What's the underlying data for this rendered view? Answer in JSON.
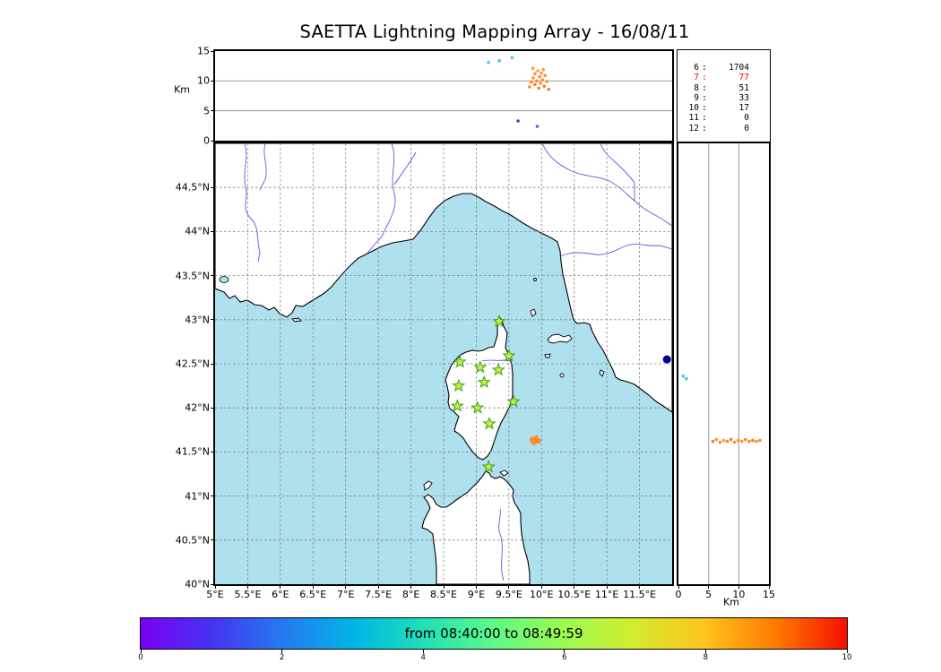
{
  "figure": {
    "title": "SAETTA Lightning Mapping Array - 16/08/11",
    "altitude_axis_label": "Km",
    "right_axis_label": "Km"
  },
  "axes": {
    "altitude_ticks": [
      {
        "label": "15",
        "v": 15
      },
      {
        "label": "10",
        "v": 10
      },
      {
        "label": "5",
        "v": 5
      },
      {
        "label": "0",
        "v": 0
      }
    ],
    "lat_ticks": [
      {
        "label": "44.5°N",
        "v": 44.5
      },
      {
        "label": "44°N",
        "v": 44
      },
      {
        "label": "43.5°N",
        "v": 43.5
      },
      {
        "label": "43°N",
        "v": 43
      },
      {
        "label": "42.5°N",
        "v": 42.5
      },
      {
        "label": "42°N",
        "v": 42
      },
      {
        "label": "41.5°N",
        "v": 41.5
      },
      {
        "label": "41°N",
        "v": 41
      },
      {
        "label": "40.5°N",
        "v": 40.5
      },
      {
        "label": "40°N",
        "v": 40
      }
    ],
    "lon_ticks": [
      {
        "label": "5°E",
        "v": 5
      },
      {
        "label": "5.5°E",
        "v": 5.5
      },
      {
        "label": "6°E",
        "v": 6
      },
      {
        "label": "6.5°E",
        "v": 6.5
      },
      {
        "label": "7°E",
        "v": 7
      },
      {
        "label": "7.5°E",
        "v": 7.5
      },
      {
        "label": "8°E",
        "v": 8
      },
      {
        "label": "8.5°E",
        "v": 8.5
      },
      {
        "label": "9°E",
        "v": 9
      },
      {
        "label": "9.5°E",
        "v": 9.5
      },
      {
        "label": "10°E",
        "v": 10
      },
      {
        "label": "10.5°E",
        "v": 10.5
      },
      {
        "label": "11°E",
        "v": 11
      },
      {
        "label": "11.5°E",
        "v": 11.5
      }
    ],
    "km_ticks_right": [
      {
        "label": "0",
        "v": 0
      },
      {
        "label": "5",
        "v": 5
      },
      {
        "label": "10",
        "v": 10
      },
      {
        "label": "15",
        "v": 15
      }
    ]
  },
  "legend": {
    "sep": ":",
    "text_color": "#000000",
    "highlight_color": "#ff0000",
    "rows": [
      {
        "level": "6",
        "count": "1704",
        "highlight": false
      },
      {
        "level": "7",
        "count": "77",
        "highlight": true
      },
      {
        "level": "8",
        "count": "51",
        "highlight": false
      },
      {
        "level": "9",
        "count": "33",
        "highlight": false
      },
      {
        "level": "10",
        "count": "17",
        "highlight": false
      },
      {
        "level": "11",
        "count": "0",
        "highlight": false
      },
      {
        "level": "12",
        "count": "0",
        "highlight": false
      }
    ]
  },
  "colorbar": {
    "label": "from 08:40:00 to 08:49:59",
    "ticks": [
      {
        "label": "0",
        "v": 0
      },
      {
        "label": "2",
        "v": 2
      },
      {
        "label": "4",
        "v": 4
      },
      {
        "label": "6",
        "v": 6
      },
      {
        "label": "8",
        "v": 8
      },
      {
        "label": "10",
        "v": 10
      }
    ],
    "gradient": [
      "#7a00f5",
      "#4633f2",
      "#2579ef",
      "#00b4e6",
      "#1fe0b8",
      "#5ef988",
      "#9cfb50",
      "#d4ea2e",
      "#ffc31c",
      "#ff7a00",
      "#f70e00"
    ]
  },
  "map_style": {
    "sea_color": "#afe0ee",
    "land_color": "#ffffff",
    "coast_color": "#000000",
    "river_color": "#5b5bd6",
    "grid_color": "#808080",
    "station_fill": "#c4f04a",
    "station_edge": "#3aa010"
  },
  "chart_data": {
    "type": "scatter",
    "title": "SAETTA Lightning Mapping Array - 16/08/11",
    "time_window_label": "from 08:40:00 to 08:49:59",
    "time_axis_minutes": [
      0,
      10
    ],
    "altitude_axis_km": [
      0,
      15
    ],
    "map_extent": {
      "lon_deg_e": [
        5,
        12
      ],
      "lat_deg_n": [
        40,
        45
      ]
    },
    "station_level_counts": [
      [
        6,
        1704
      ],
      [
        7,
        77
      ],
      [
        8,
        51
      ],
      [
        9,
        33
      ],
      [
        10,
        17
      ],
      [
        11,
        0
      ],
      [
        12,
        0
      ]
    ],
    "stations_lonlat": [
      [
        9.35,
        42.98
      ],
      [
        8.75,
        42.52
      ],
      [
        9.06,
        42.46
      ],
      [
        9.34,
        42.43
      ],
      [
        9.5,
        42.59
      ],
      [
        9.12,
        42.29
      ],
      [
        8.73,
        42.25
      ],
      [
        8.71,
        42.02
      ],
      [
        9.02,
        42.0
      ],
      [
        9.57,
        42.07
      ],
      [
        9.2,
        41.82
      ],
      [
        9.19,
        41.33
      ]
    ],
    "points": {
      "time_height": [
        [
          6.88,
          9.0,
          "#ff8c2a"
        ],
        [
          6.92,
          9.8,
          "#ff8c2a"
        ],
        [
          6.95,
          12.1,
          "#ff9a3c"
        ],
        [
          6.96,
          10.5,
          "#ff8c2a"
        ],
        [
          7.0,
          11.2,
          "#ff8c2a"
        ],
        [
          7.0,
          9.4,
          "#fb7d20"
        ],
        [
          7.04,
          10.0,
          "#ff8c2a"
        ],
        [
          7.06,
          11.7,
          "#ff9a3c"
        ],
        [
          7.08,
          8.8,
          "#fb7d20"
        ],
        [
          7.1,
          10.7,
          "#ff8c2a"
        ],
        [
          7.12,
          9.6,
          "#ff8c2a"
        ],
        [
          7.14,
          11.3,
          "#ff9a3c"
        ],
        [
          7.16,
          10.2,
          "#ff8c2a"
        ],
        [
          7.18,
          11.9,
          "#ff9a3c"
        ],
        [
          7.2,
          9.1,
          "#fb7d20"
        ],
        [
          7.22,
          10.9,
          "#ff8c2a"
        ],
        [
          7.26,
          9.9,
          "#ff8c2a"
        ],
        [
          7.3,
          8.6,
          "#fb7d20"
        ],
        [
          5.98,
          13.1,
          "#45c8f0"
        ],
        [
          6.22,
          13.4,
          "#45c8f0"
        ],
        [
          6.5,
          13.9,
          "#45c8f0"
        ],
        [
          6.63,
          3.3,
          "#2a52be"
        ],
        [
          7.05,
          2.4,
          "#4169e1"
        ]
      ],
      "map_lonlat": [
        [
          9.84,
          41.64,
          "#ff8c2a"
        ],
        [
          9.86,
          41.61,
          "#fb7d20"
        ],
        [
          9.87,
          41.66,
          "#ff8c2a"
        ],
        [
          9.89,
          41.63,
          "#ff9a3c"
        ],
        [
          9.9,
          41.6,
          "#ff8c2a"
        ],
        [
          9.91,
          41.65,
          "#ff8c2a"
        ],
        [
          9.93,
          41.62,
          "#fb7d20"
        ],
        [
          9.95,
          41.64,
          "#ff8c2a"
        ],
        [
          9.96,
          41.61,
          "#ff8c2a"
        ],
        [
          9.88,
          41.59,
          "#ff9a3c"
        ],
        [
          9.92,
          41.67,
          "#ff8c2a"
        ],
        [
          9.97,
          41.63,
          "#ff8c2a"
        ],
        [
          11.92,
          42.55,
          "#00008b",
          4.5
        ]
      ],
      "height_lat": [
        [
          5.7,
          41.62,
          "#fb7d20"
        ],
        [
          6.3,
          41.64,
          "#ff8c2a"
        ],
        [
          6.9,
          41.61,
          "#ff8c2a"
        ],
        [
          7.5,
          41.63,
          "#ff9a3c"
        ],
        [
          8.1,
          41.62,
          "#ff8c2a"
        ],
        [
          8.7,
          41.64,
          "#fb7d20"
        ],
        [
          9.3,
          41.61,
          "#ff8c2a"
        ],
        [
          9.9,
          41.63,
          "#ff8c2a"
        ],
        [
          10.5,
          41.62,
          "#ff9a3c"
        ],
        [
          11.1,
          41.64,
          "#ff8c2a"
        ],
        [
          11.7,
          41.62,
          "#ff8c2a"
        ],
        [
          12.3,
          41.63,
          "#fb7d20"
        ],
        [
          12.9,
          41.62,
          "#ff8c2a"
        ],
        [
          13.5,
          41.63,
          "#ff8c2a"
        ],
        [
          0.8,
          42.36,
          "#45c8f0"
        ],
        [
          1.3,
          42.33,
          "#45c8f0"
        ]
      ]
    }
  }
}
